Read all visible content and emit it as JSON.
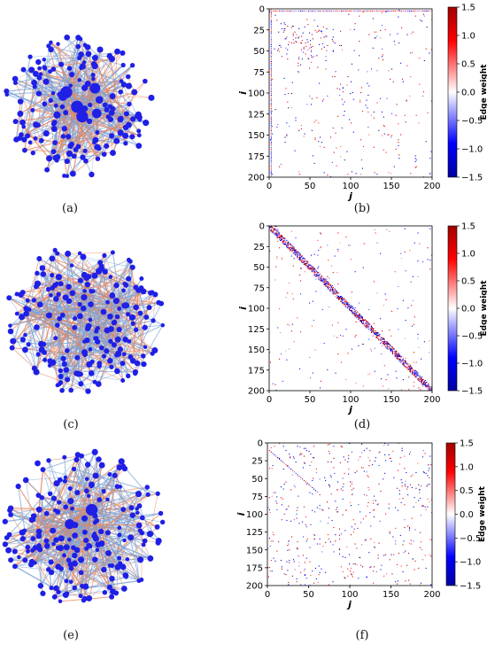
{
  "panels": [
    {
      "label": "(a)",
      "kind": "network",
      "seed": 11,
      "nodes": 170,
      "hubs": 9,
      "edges": 430,
      "red_frac": 0.42
    },
    {
      "label": "(b)",
      "kind": "heatmap",
      "seed": 21,
      "pattern": "hub-rows"
    },
    {
      "label": "(c)",
      "kind": "network",
      "seed": 31,
      "nodes": 200,
      "hubs": 0,
      "edges": 480,
      "red_frac": 0.38
    },
    {
      "label": "(d)",
      "kind": "heatmap",
      "seed": 41,
      "pattern": "diagonal-band"
    },
    {
      "label": "(e)",
      "kind": "network",
      "seed": 51,
      "nodes": 200,
      "hubs": 2,
      "edges": 520,
      "red_frac": 0.4
    },
    {
      "label": "(f)",
      "kind": "heatmap",
      "seed": 61,
      "pattern": "uniform-random"
    }
  ],
  "chart_data": [
    {
      "type": "heatmap",
      "panel": "(b)",
      "xlabel": "j",
      "ylabel": "i",
      "xlim": [
        0,
        200
      ],
      "ylim": [
        0,
        200
      ],
      "y_inverted": true,
      "xticks": [
        "0",
        "50",
        "100",
        "150",
        "200"
      ],
      "yticks": [
        "0",
        "25",
        "50",
        "75",
        "100",
        "125",
        "150",
        "175",
        "200"
      ],
      "colorbar": {
        "label": "Edge weight",
        "min": -1.5,
        "max": 1.5,
        "ticks": [
          "1.5",
          "1.0",
          "0.5",
          "0.0",
          "−0.5",
          "−1.0",
          "−1.5"
        ],
        "colormap": "seismic"
      }
    },
    {
      "type": "heatmap",
      "panel": "(d)",
      "xlabel": "j",
      "ylabel": "i",
      "xlim": [
        0,
        200
      ],
      "ylim": [
        0,
        200
      ],
      "y_inverted": true,
      "xticks": [
        "0",
        "50",
        "100",
        "150",
        "200"
      ],
      "yticks": [
        "0",
        "25",
        "50",
        "75",
        "100",
        "125",
        "150",
        "175",
        "200"
      ],
      "colorbar": {
        "label": "Edge weight",
        "min": -1.5,
        "max": 1.5,
        "ticks": [
          "1.5",
          "1.0",
          "0.5",
          "0.0",
          "−0.5",
          "−1.0",
          "−1.5"
        ],
        "colormap": "seismic"
      }
    },
    {
      "type": "heatmap",
      "panel": "(f)",
      "xlabel": "j",
      "ylabel": "i",
      "xlim": [
        0,
        200
      ],
      "ylim": [
        0,
        200
      ],
      "y_inverted": true,
      "xticks": [
        "0",
        "50",
        "100",
        "150",
        "200"
      ],
      "yticks": [
        "0",
        "25",
        "50",
        "75",
        "100",
        "125",
        "150",
        "175",
        "200"
      ],
      "colorbar": {
        "label": "Edge weight",
        "min": -1.5,
        "max": 1.5,
        "ticks": [
          "1.5",
          "1.0",
          "0.5",
          "0.0",
          "−0.5",
          "−1.0",
          "−1.5"
        ],
        "colormap": "seismic"
      }
    }
  ],
  "colors": {
    "node": "#1f1fe6",
    "edge_pos": "#e8835a",
    "edge_neg": "#7aa2d6",
    "heat_pos": "#b30000",
    "heat_neg": "#0000b3"
  }
}
